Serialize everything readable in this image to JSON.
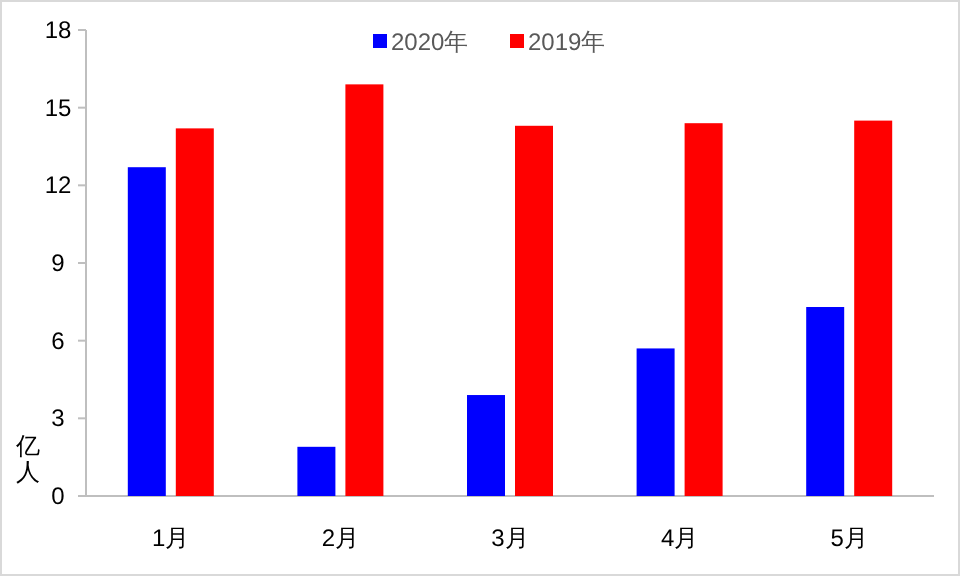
{
  "chart_data": {
    "type": "bar",
    "ylabel": "亿人",
    "categories": [
      "1月",
      "2月",
      "3月",
      "4月",
      "5月"
    ],
    "series": [
      {
        "name": "2020年",
        "color": "#0000ff",
        "values": [
          12.7,
          1.9,
          3.9,
          5.7,
          7.3
        ]
      },
      {
        "name": "2019年",
        "color": "#ff0000",
        "values": [
          14.2,
          15.9,
          14.3,
          14.4,
          14.5
        ]
      }
    ],
    "ylim": [
      0,
      18
    ],
    "yticks": [
      0,
      3,
      6,
      9,
      12,
      15,
      18
    ],
    "legend": "top",
    "grid": false
  }
}
